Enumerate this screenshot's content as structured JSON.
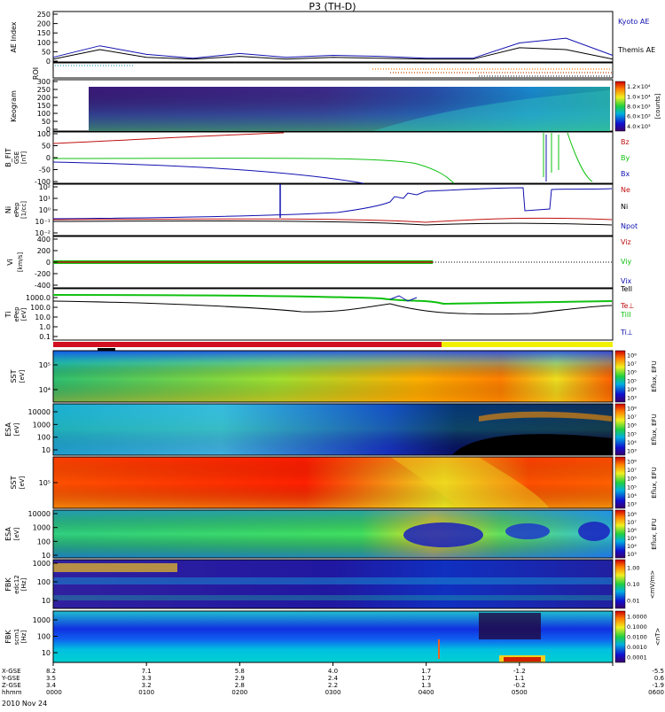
{
  "title": "P3 (TH-D)",
  "date_label": "2010 Nov 24",
  "ephemeris": {
    "rows": [
      {
        "label": "X-GSE",
        "values": [
          "8.2",
          "7.1",
          "5.8",
          "4.0",
          "1.7",
          "-1.2",
          "-5.5"
        ]
      },
      {
        "label": "Y-GSE",
        "values": [
          "3.5",
          "3.3",
          "2.9",
          "2.4",
          "1.7",
          "1.1",
          "0.6"
        ]
      },
      {
        "label": "Z-GSE",
        "values": [
          "3.4",
          "3.2",
          "2.8",
          "2.2",
          "1.3",
          "-0.2",
          "-1.9"
        ]
      },
      {
        "label": "hhmm",
        "values": [
          "0000",
          "0100",
          "0200",
          "0300",
          "0400",
          "0500",
          "0600"
        ]
      }
    ]
  },
  "colors": {
    "blue": "#1010b0",
    "red": "#c01010",
    "green": "#10c010",
    "black": "#000000",
    "cyan": "#30a0d0",
    "orange": "#ff7700"
  },
  "chart_data": [
    {
      "type": "line",
      "panel": "ae",
      "ylabel": "AE Index",
      "ylim": [
        0,
        250
      ],
      "yticks": [
        "250",
        "200",
        "150",
        "100",
        "50",
        "0"
      ],
      "legend": [
        "Kyoto AE",
        "Themis AE"
      ],
      "x": [
        0,
        0.5,
        1,
        1.5,
        2,
        2.5,
        3,
        3.5,
        4,
        4.5,
        5,
        5.5,
        6
      ],
      "series": [
        {
          "name": "Kyoto AE",
          "values": [
            20,
            80,
            35,
            15,
            40,
            20,
            30,
            25,
            15,
            15,
            95,
            120,
            30
          ]
        },
        {
          "name": "Themis AE",
          "values": [
            10,
            60,
            20,
            10,
            25,
            10,
            20,
            15,
            10,
            10,
            70,
            60,
            10
          ]
        }
      ]
    },
    {
      "type": "bar",
      "panel": "roi",
      "ylabel": "ROI",
      "note": "region-of-interest flags"
    },
    {
      "type": "heatmap",
      "panel": "keogram",
      "ylabel": "Keogram",
      "yticks": [
        "300",
        "250",
        "200",
        "150",
        "100",
        "50",
        "0"
      ],
      "colorbar_label": "[counts]",
      "colorbar_ticks": [
        "1.2×10⁴",
        "1.0×10⁴",
        "8.0×10³",
        "6.0×10³",
        "4.0×10³"
      ]
    },
    {
      "type": "line",
      "panel": "bfit",
      "ylabel": "B_FIT",
      "ylabel2": "GSE",
      "ylabel3": "[nT]",
      "ylim": [
        -100,
        100
      ],
      "yticks": [
        "100",
        "50",
        "0",
        "-50",
        "-100"
      ],
      "legend": [
        "Bz",
        "By",
        "Bx"
      ]
    },
    {
      "type": "line",
      "panel": "density",
      "ylabel": "Ni",
      "ylabel2": "ePep",
      "ylabel3": "[1/cc]",
      "yticks": [
        "10²",
        "10¹",
        "10⁰",
        "10⁻¹",
        "10⁻²"
      ],
      "legend": [
        "Ne",
        "Ni",
        "Npot"
      ]
    },
    {
      "type": "line",
      "panel": "velocity",
      "ylabel": "Vi",
      "ylabel3": "[km/s]",
      "ylim": [
        -400,
        400
      ],
      "yticks": [
        "400",
        "200",
        "0",
        "-200",
        "-400"
      ],
      "legend": [
        "Viz",
        "Viy",
        "Vix"
      ]
    },
    {
      "type": "line",
      "panel": "temperature",
      "ylabel": "Ti",
      "ylabel2": "ePep",
      "ylabel3": "[eV]",
      "yticks": [
        "1000.0",
        "100.0",
        "10.0",
        "1.0",
        "0.1"
      ],
      "legend": [
        "TeII",
        "Te⊥",
        "TiII",
        "Ti⊥"
      ]
    },
    {
      "type": "heatmap",
      "panel": "sst_ion",
      "ylabel": "SST",
      "ylabel3": "[eV]",
      "yticks": [
        "10⁵",
        "10⁴"
      ],
      "colorbar_label": "Eflux, EFU",
      "colorbar_ticks": [
        "10⁸",
        "10⁷",
        "10⁶",
        "10⁵",
        "10⁴",
        "10³"
      ]
    },
    {
      "type": "heatmap",
      "panel": "esa_ion",
      "ylabel": "ESA",
      "ylabel3": "[eV]",
      "yticks": [
        "10000",
        "1000",
        "100",
        "10"
      ],
      "colorbar_label": "Eflux, EFU",
      "colorbar_ticks": [
        "10⁸",
        "10⁷",
        "10⁶",
        "10⁵",
        "10⁴",
        "10³"
      ]
    },
    {
      "type": "heatmap",
      "panel": "sst_elec",
      "ylabel": "SST",
      "ylabel3": "[eV]",
      "yticks": [
        "10⁵"
      ],
      "colorbar_label": "Eflux, EFU",
      "colorbar_ticks": [
        "10⁸",
        "10⁷",
        "10⁶",
        "10⁵",
        "10⁴",
        "10³"
      ]
    },
    {
      "type": "heatmap",
      "panel": "esa_elec",
      "ylabel": "ESA",
      "ylabel3": "[eV]",
      "yticks": [
        "10000",
        "1000",
        "100",
        "10"
      ],
      "colorbar_label": "Eflux, EFU",
      "colorbar_ticks": [
        "10⁸",
        "10⁷",
        "10⁶",
        "10⁵",
        "10⁴",
        "10³"
      ]
    },
    {
      "type": "heatmap",
      "panel": "fbk_e",
      "ylabel": "FBK",
      "ylabel2": "edc12",
      "ylabel3": "[Hz]",
      "yticks": [
        "1000",
        "100",
        "10"
      ],
      "colorbar_label": "<mV/m>",
      "colorbar_ticks": [
        "1.00",
        "0.10",
        "0.01"
      ]
    },
    {
      "type": "heatmap",
      "panel": "fbk_b",
      "ylabel": "FBK",
      "ylabel2": "scm1",
      "ylabel3": "[Hz]",
      "yticks": [
        "1000",
        "100",
        "10"
      ],
      "colorbar_label": "<nT>",
      "colorbar_ticks": [
        "1.0000",
        "0.1000",
        "0.0100",
        "0.0010",
        "0.0001"
      ]
    }
  ]
}
